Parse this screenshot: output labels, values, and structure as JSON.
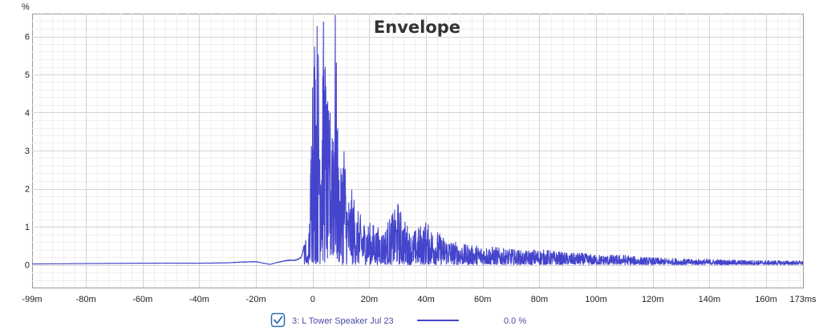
{
  "chart_data": {
    "type": "line",
    "title": "Envelope",
    "ylabel": "%",
    "x_unit_label": "ms",
    "xlim": [
      -99,
      173
    ],
    "ylim": [
      -0.6,
      6.6
    ],
    "grid": true,
    "x_ticks": [
      {
        "value": -99,
        "label": "-99m"
      },
      {
        "value": -80,
        "label": "-80m"
      },
      {
        "value": -60,
        "label": "-60m"
      },
      {
        "value": -40,
        "label": "-40m"
      },
      {
        "value": -20,
        "label": "-20m"
      },
      {
        "value": 0,
        "label": "0"
      },
      {
        "value": 20,
        "label": "20m"
      },
      {
        "value": 40,
        "label": "40m"
      },
      {
        "value": 60,
        "label": "60m"
      },
      {
        "value": 80,
        "label": "80m"
      },
      {
        "value": 100,
        "label": "100m"
      },
      {
        "value": 120,
        "label": "120m"
      },
      {
        "value": 140,
        "label": "140m"
      },
      {
        "value": 160,
        "label": "160m"
      },
      {
        "value": 173,
        "label": "173ms"
      }
    ],
    "y_ticks": [
      {
        "value": 0,
        "label": "0"
      },
      {
        "value": 1,
        "label": "1"
      },
      {
        "value": 2,
        "label": "2"
      },
      {
        "value": 3,
        "label": "3"
      },
      {
        "value": 4,
        "label": "4"
      },
      {
        "value": 5,
        "label": "5"
      },
      {
        "value": 6,
        "label": "6"
      }
    ],
    "series": [
      {
        "name": "3: L Tower Speaker Jul 23",
        "color": "#4444cc",
        "checked": true,
        "value_readout": "0.0 %",
        "keypoints": [
          [
            -99,
            0.02
          ],
          [
            -80,
            0.03
          ],
          [
            -60,
            0.04
          ],
          [
            -40,
            0.04
          ],
          [
            -30,
            0.05
          ],
          [
            -25,
            0.07
          ],
          [
            -20,
            0.08
          ],
          [
            -18,
            0.05
          ],
          [
            -15,
            0.01
          ],
          [
            -13,
            0.05
          ],
          [
            -10,
            0.1
          ],
          [
            -8,
            0.12
          ],
          [
            -6,
            0.12
          ],
          [
            -5,
            0.15
          ],
          [
            -4,
            0.2
          ],
          [
            -3,
            0.5
          ],
          [
            -2.5,
            0.7
          ],
          [
            -2,
            0.18
          ],
          [
            -1.5,
            0.6
          ],
          [
            -1,
            1.5
          ],
          [
            -0.5,
            4.0
          ],
          [
            0,
            6.6
          ],
          [
            1,
            6.6
          ],
          [
            2,
            6.0
          ],
          [
            3,
            5.5
          ],
          [
            4,
            6.6
          ],
          [
            5,
            4.6
          ],
          [
            6,
            3.6
          ],
          [
            7,
            5.5
          ],
          [
            8,
            6.6
          ],
          [
            9,
            3.0
          ],
          [
            10,
            2.5
          ],
          [
            11,
            3.8
          ],
          [
            12,
            2.0
          ],
          [
            13,
            1.8
          ],
          [
            14,
            2.0
          ],
          [
            15,
            1.5
          ],
          [
            18,
            1.2
          ],
          [
            20,
            1.1
          ],
          [
            22,
            1.0
          ],
          [
            25,
            0.9
          ],
          [
            28,
            1.3
          ],
          [
            30,
            1.6
          ],
          [
            32,
            1.2
          ],
          [
            35,
            0.8
          ],
          [
            38,
            1.0
          ],
          [
            40,
            1.1
          ],
          [
            43,
            0.9
          ],
          [
            45,
            0.8
          ],
          [
            50,
            0.6
          ],
          [
            55,
            0.5
          ],
          [
            60,
            0.5
          ],
          [
            65,
            0.45
          ],
          [
            70,
            0.4
          ],
          [
            75,
            0.35
          ],
          [
            80,
            0.4
          ],
          [
            85,
            0.35
          ],
          [
            90,
            0.3
          ],
          [
            95,
            0.3
          ],
          [
            100,
            0.25
          ],
          [
            105,
            0.25
          ],
          [
            110,
            0.25
          ],
          [
            115,
            0.2
          ],
          [
            120,
            0.18
          ],
          [
            130,
            0.15
          ],
          [
            140,
            0.14
          ],
          [
            150,
            0.12
          ],
          [
            160,
            0.11
          ],
          [
            173,
            0.1
          ]
        ]
      }
    ]
  },
  "legend": {
    "label": "3: L Tower Speaker Jul 23",
    "value": "0.0 %"
  }
}
